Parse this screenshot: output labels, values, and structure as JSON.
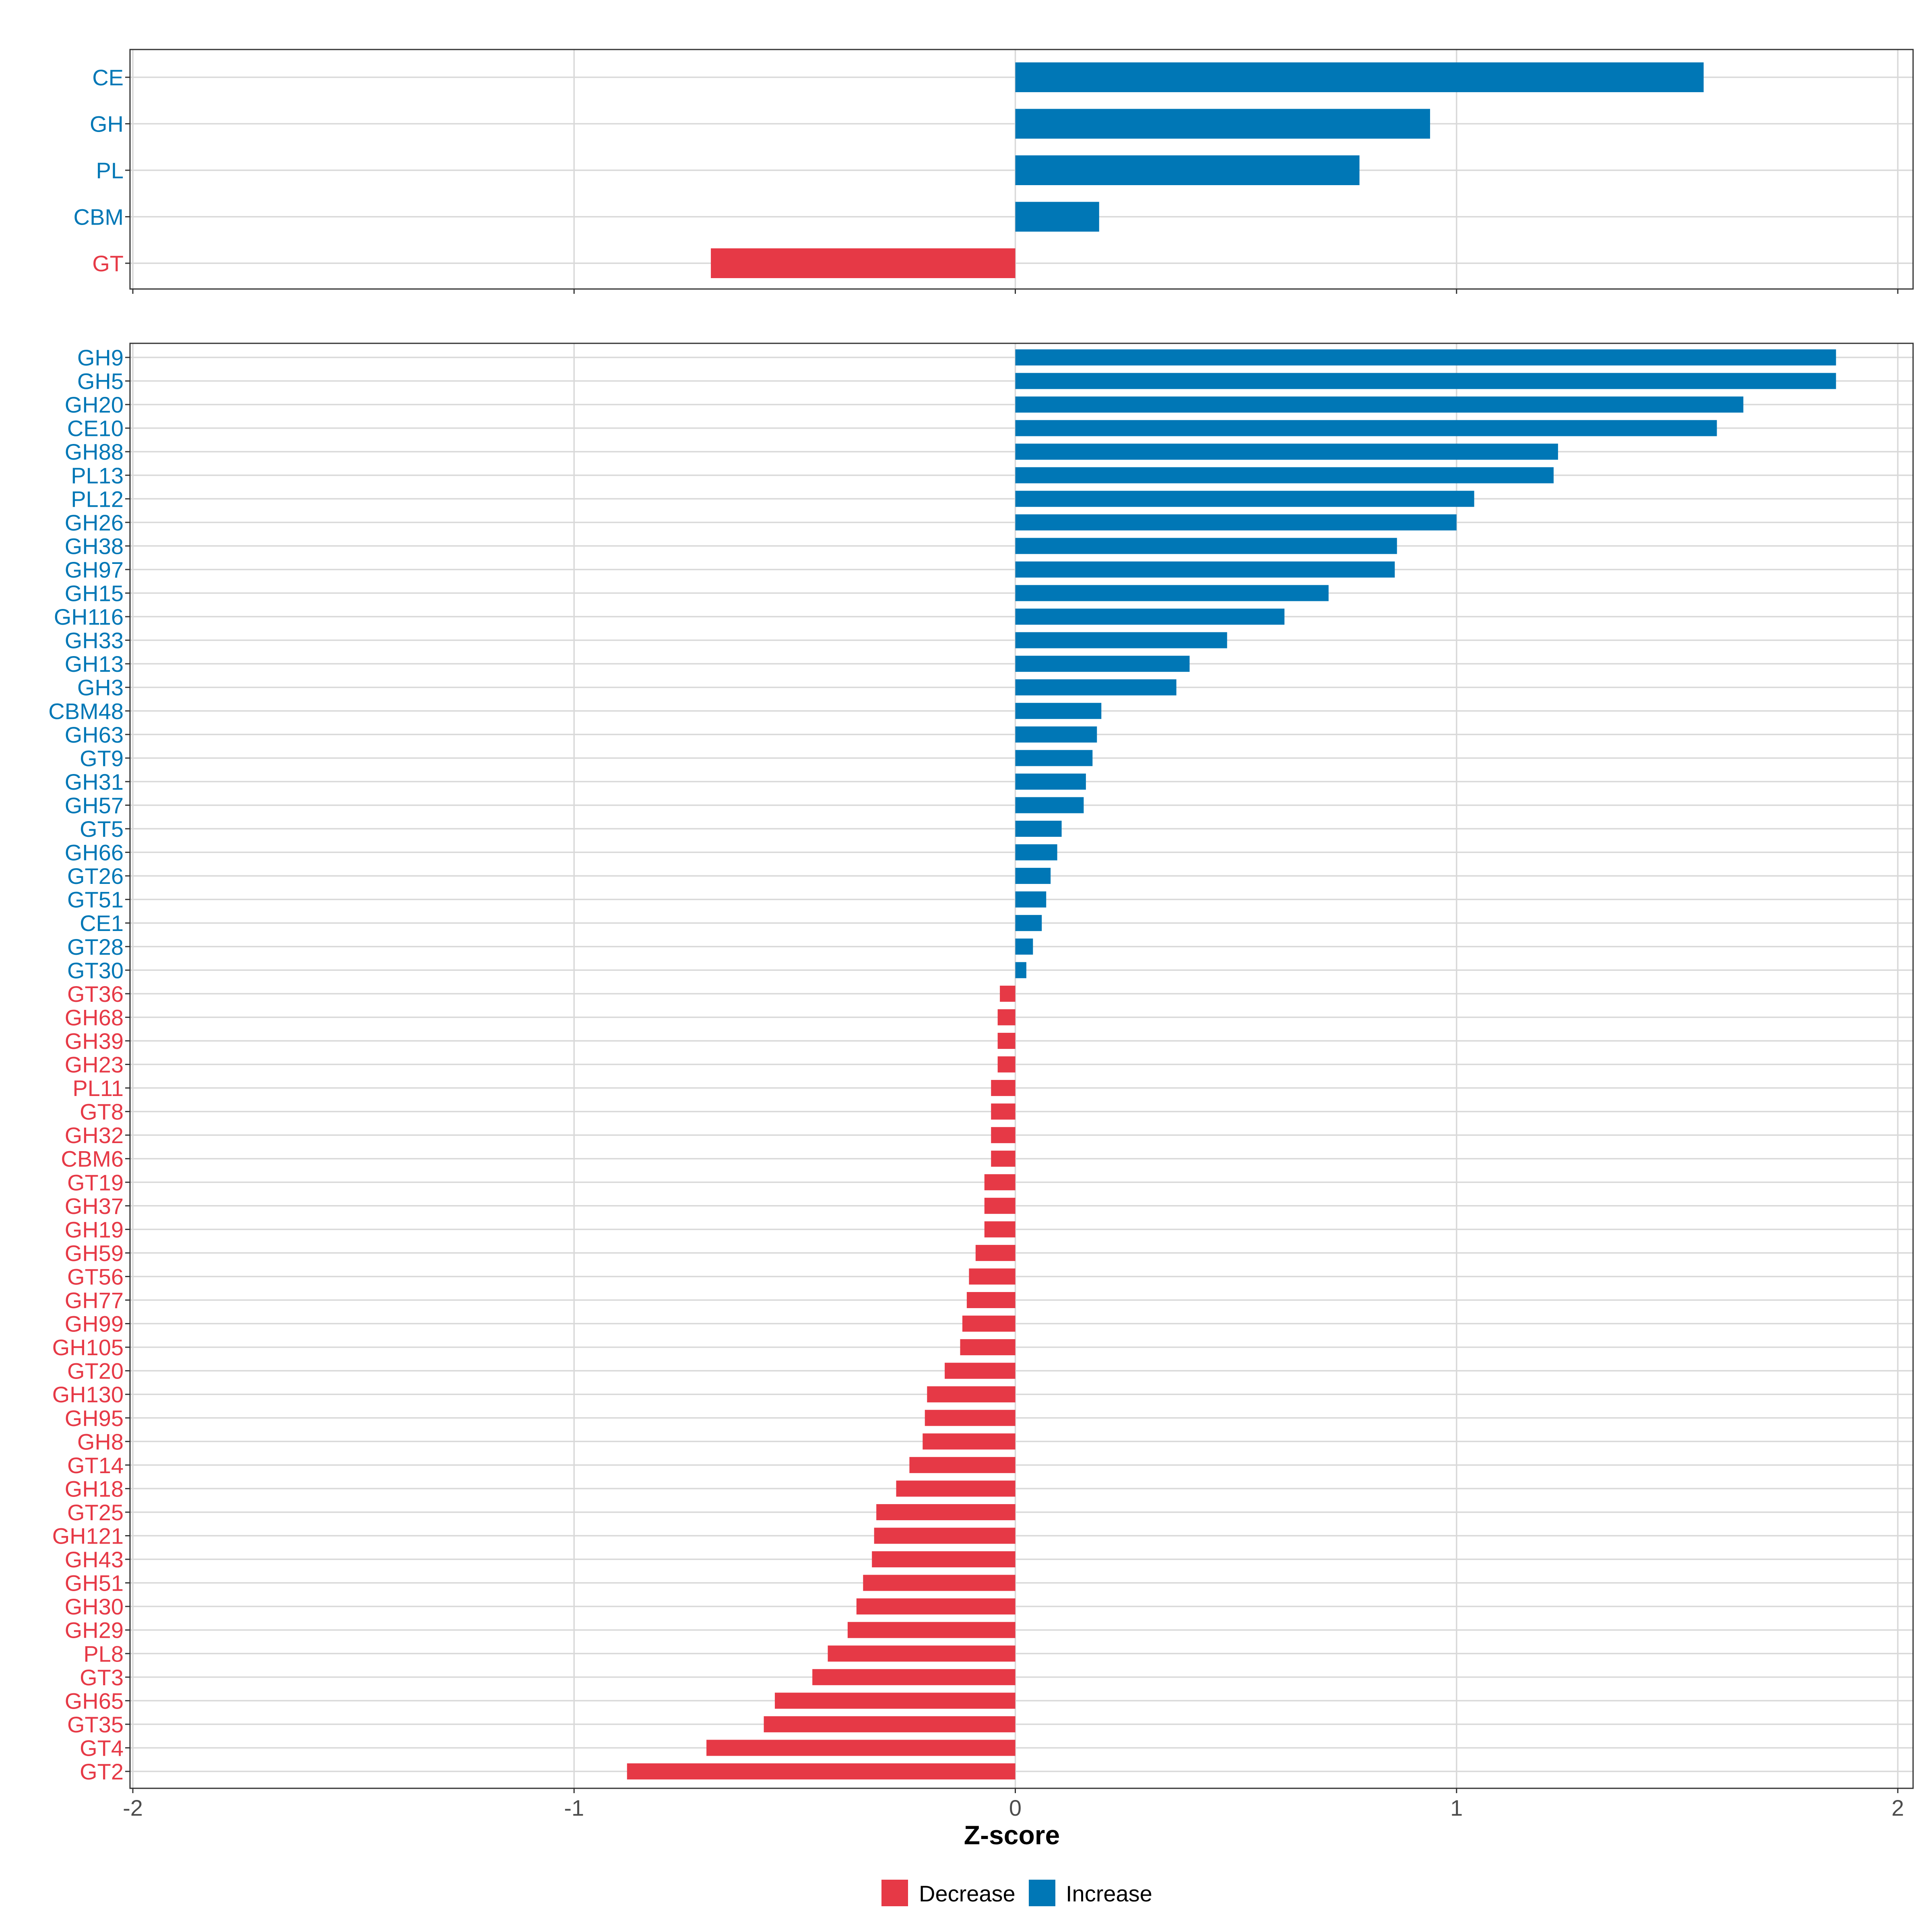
{
  "colors": {
    "decrease": "#E63946",
    "increase": "#0077B6",
    "grid": "#D9D9D9",
    "axis_text": "#4D4D4D",
    "panel_border": "#333333"
  },
  "chart_data": [
    {
      "type": "bar",
      "orientation": "horizontal",
      "panel": "top",
      "title": "",
      "xlabel": "",
      "ylabel": "",
      "xlim": [
        -2,
        2
      ],
      "grid": true,
      "categories": [
        "CE",
        "GH",
        "PL",
        "CBM",
        "GT"
      ],
      "values": [
        1.56,
        0.94,
        0.78,
        0.19,
        -0.69
      ]
    },
    {
      "type": "bar",
      "orientation": "horizontal",
      "panel": "bottom",
      "title": "",
      "xlabel": "Z-score",
      "ylabel": "",
      "xlim": [
        -2,
        2
      ],
      "xticks": [
        -2,
        -1,
        0,
        1,
        2
      ],
      "xtick_labels": [
        "-2",
        "-1",
        "0",
        "1",
        "2"
      ],
      "grid": true,
      "categories": [
        "GH9",
        "GH5",
        "GH20",
        "CE10",
        "GH88",
        "PL13",
        "PL12",
        "GH26",
        "GH38",
        "GH97",
        "GH15",
        "GH116",
        "GH33",
        "GH13",
        "GH3",
        "CBM48",
        "GH63",
        "GT9",
        "GH31",
        "GH57",
        "GT5",
        "GH66",
        "GT26",
        "GT51",
        "CE1",
        "GT28",
        "GT30",
        "GT36",
        "GH68",
        "GH39",
        "GH23",
        "PL11",
        "GT8",
        "GH32",
        "CBM6",
        "GT19",
        "GH37",
        "GH19",
        "GH59",
        "GT56",
        "GH77",
        "GH99",
        "GH105",
        "GT20",
        "GH130",
        "GH95",
        "GH8",
        "GT14",
        "GH18",
        "GT25",
        "GH121",
        "GH43",
        "GH51",
        "GH30",
        "GH29",
        "PL8",
        "GT3",
        "GH65",
        "GT35",
        "GT4",
        "GT2"
      ],
      "values": [
        1.86,
        1.86,
        1.65,
        1.59,
        1.23,
        1.22,
        1.04,
        1.0,
        0.865,
        0.86,
        0.71,
        0.61,
        0.48,
        0.395,
        0.365,
        0.195,
        0.185,
        0.175,
        0.16,
        0.155,
        0.105,
        0.095,
        0.08,
        0.07,
        0.06,
        0.04,
        0.025,
        -0.035,
        -0.04,
        -0.04,
        -0.04,
        -0.055,
        -0.055,
        -0.055,
        -0.055,
        -0.07,
        -0.07,
        -0.07,
        -0.09,
        -0.105,
        -0.11,
        -0.12,
        -0.125,
        -0.16,
        -0.2,
        -0.205,
        -0.21,
        -0.24,
        -0.27,
        -0.315,
        -0.32,
        -0.325,
        -0.345,
        -0.36,
        -0.38,
        -0.425,
        -0.46,
        -0.545,
        -0.57,
        -0.7,
        -0.88
      ]
    }
  ],
  "legend": {
    "position": "bottom",
    "items": [
      {
        "label": "Decrease",
        "color_key": "decrease"
      },
      {
        "label": "Increase",
        "color_key": "increase"
      }
    ]
  }
}
